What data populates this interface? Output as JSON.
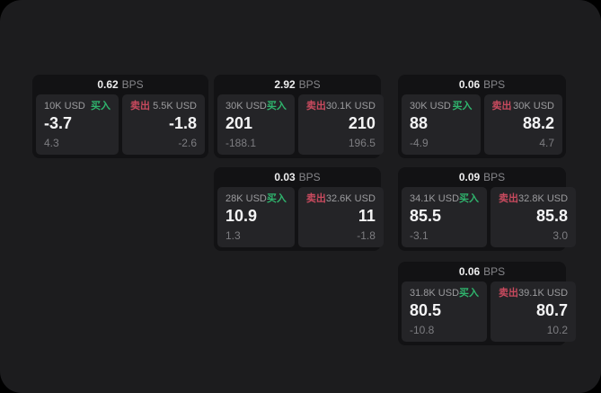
{
  "labels": {
    "buy": "买入",
    "sell": "卖出",
    "bps": "BPS"
  },
  "colors": {
    "background": "#000000",
    "surface": "#1c1c1e",
    "card": "#121214",
    "panel": "#242427",
    "buy_green": "#2fb46d",
    "sell_red": "#c84a5e"
  },
  "cards": [
    {
      "bps": "0.62",
      "buy": {
        "amount": "10K USD",
        "value": "-3.7",
        "delta": "4.3"
      },
      "sell": {
        "amount": "5.5K USD",
        "value": "-1.8",
        "delta": "-2.6"
      }
    },
    {
      "bps": "2.92",
      "buy": {
        "amount": "30K USD",
        "value": "201",
        "delta": "-188.1"
      },
      "sell": {
        "amount": "30.1K USD",
        "value": "210",
        "delta": "196.5"
      }
    },
    {
      "bps": "0.06",
      "buy": {
        "amount": "30K USD",
        "value": "88",
        "delta": "-4.9"
      },
      "sell": {
        "amount": "30K USD",
        "value": "88.2",
        "delta": "4.7"
      }
    },
    {
      "bps": "0.03",
      "buy": {
        "amount": "28K USD",
        "value": "10.9",
        "delta": "1.3"
      },
      "sell": {
        "amount": "32.6K USD",
        "value": "11",
        "delta": "-1.8"
      }
    },
    {
      "bps": "0.09",
      "buy": {
        "amount": "34.1K USD",
        "value": "85.5",
        "delta": "-3.1"
      },
      "sell": {
        "amount": "32.8K USD",
        "value": "85.8",
        "delta": "3.0"
      }
    },
    {
      "bps": "0.06",
      "buy": {
        "amount": "31.8K USD",
        "value": "80.5",
        "delta": "-10.8"
      },
      "sell": {
        "amount": "39.1K USD",
        "value": "80.7",
        "delta": "10.2"
      }
    }
  ]
}
